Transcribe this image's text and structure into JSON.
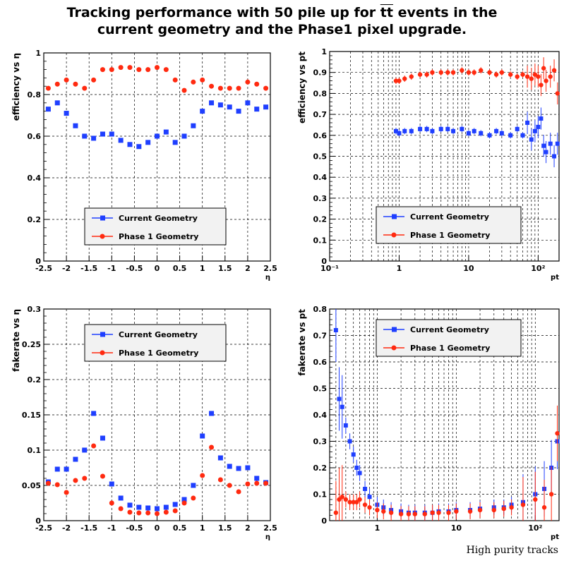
{
  "title": {
    "line1_pre": "Tracking performance with 50 pile up for ",
    "line1_tt": "tt",
    "line1_post": " events in the",
    "line2": "current geometry and the Phase1 pixel upgrade."
  },
  "footnote": "High purity tracks",
  "colors": {
    "current": "#1f3fff",
    "phase1": "#ff2a10"
  },
  "chart_data": [
    {
      "id": "eff-eta",
      "type": "scatter",
      "ylabel": "efficiency vs η",
      "xlabel": "η",
      "xlim": [
        -2.5,
        2.5
      ],
      "ylim": [
        0,
        1
      ],
      "xscale": "linear",
      "xticks": [
        -2.5,
        -2,
        -1.5,
        -1,
        -0.5,
        0,
        0.5,
        1,
        1.5,
        2,
        2.5
      ],
      "xticklabels": [
        "-2.5",
        "-2",
        "-1.5",
        "-1",
        "-0.5",
        "0",
        "0.5",
        "1",
        "1.5",
        "2",
        "2.5"
      ],
      "yticks": [
        0,
        0.2,
        0.4,
        0.6,
        0.8,
        1
      ],
      "yticklabels": [
        "0",
        "0.2",
        "0.4",
        "0.6",
        "0.8",
        "1"
      ],
      "grid": true,
      "legend_position": "bottom-center",
      "series": [
        {
          "name": "Current Geometry",
          "marker": "square",
          "x": [
            -2.4,
            -2.2,
            -2.0,
            -1.8,
            -1.6,
            -1.4,
            -1.2,
            -1.0,
            -0.8,
            -0.6,
            -0.4,
            -0.2,
            0.0,
            0.2,
            0.4,
            0.6,
            0.8,
            1.0,
            1.2,
            1.4,
            1.6,
            1.8,
            2.0,
            2.2,
            2.4
          ],
          "y": [
            0.73,
            0.76,
            0.71,
            0.65,
            0.6,
            0.59,
            0.61,
            0.61,
            0.58,
            0.56,
            0.55,
            0.57,
            0.6,
            0.62,
            0.57,
            0.6,
            0.65,
            0.72,
            0.76,
            0.75,
            0.74,
            0.72,
            0.76,
            0.73,
            0.74
          ]
        },
        {
          "name": "Phase 1 Geometry",
          "marker": "circle",
          "x": [
            -2.4,
            -2.2,
            -2.0,
            -1.8,
            -1.6,
            -1.4,
            -1.2,
            -1.0,
            -0.8,
            -0.6,
            -0.4,
            -0.2,
            0.0,
            0.2,
            0.4,
            0.6,
            0.8,
            1.0,
            1.2,
            1.4,
            1.6,
            1.8,
            2.0,
            2.2,
            2.4
          ],
          "y": [
            0.83,
            0.85,
            0.87,
            0.85,
            0.83,
            0.87,
            0.92,
            0.92,
            0.93,
            0.93,
            0.92,
            0.92,
            0.93,
            0.92,
            0.87,
            0.82,
            0.86,
            0.87,
            0.84,
            0.83,
            0.83,
            0.83,
            0.86,
            0.85,
            0.83
          ]
        }
      ]
    },
    {
      "id": "eff-pt",
      "type": "scatter",
      "ylabel": "efficiency vs pt",
      "xlabel": "pt",
      "xlim": [
        0.1,
        200
      ],
      "ylim": [
        0,
        1
      ],
      "xscale": "log",
      "xticks": [
        0.1,
        1,
        10,
        100
      ],
      "xticklabels": [
        "10⁻¹",
        "1",
        "10",
        "10²"
      ],
      "yticks": [
        0,
        0.1,
        0.2,
        0.3,
        0.4,
        0.5,
        0.6,
        0.7,
        0.8,
        0.9,
        1
      ],
      "yticklabels": [
        "0",
        "0.1",
        "0.2",
        "0.3",
        "0.4",
        "0.5",
        "0.6",
        "0.7",
        "0.8",
        "0.9",
        "1"
      ],
      "grid": true,
      "legend_position": "bottom-left",
      "series": [
        {
          "name": "Current Geometry",
          "marker": "square",
          "x": [
            0.9,
            1.0,
            1.2,
            1.5,
            2,
            2.5,
            3,
            4,
            5,
            6,
            8,
            10,
            12,
            15,
            20,
            25,
            30,
            40,
            50,
            60,
            70,
            80,
            90,
            100,
            110,
            120,
            130,
            150,
            170,
            190
          ],
          "y": [
            0.62,
            0.61,
            0.62,
            0.62,
            0.63,
            0.63,
            0.62,
            0.63,
            0.63,
            0.62,
            0.63,
            0.61,
            0.62,
            0.61,
            0.6,
            0.62,
            0.61,
            0.6,
            0.63,
            0.6,
            0.66,
            0.58,
            0.62,
            0.64,
            0.68,
            0.55,
            0.52,
            0.56,
            0.5,
            0.56
          ]
        },
        {
          "name": "Phase 1 Geometry",
          "marker": "circle",
          "x": [
            0.9,
            1.0,
            1.2,
            1.5,
            2,
            2.5,
            3,
            4,
            5,
            6,
            8,
            10,
            12,
            15,
            20,
            25,
            30,
            40,
            50,
            60,
            70,
            80,
            90,
            100,
            110,
            120,
            130,
            150,
            170,
            190
          ],
          "y": [
            0.86,
            0.86,
            0.87,
            0.88,
            0.89,
            0.89,
            0.9,
            0.9,
            0.9,
            0.9,
            0.91,
            0.9,
            0.9,
            0.91,
            0.9,
            0.89,
            0.9,
            0.89,
            0.88,
            0.89,
            0.88,
            0.87,
            0.89,
            0.88,
            0.84,
            0.92,
            0.86,
            0.88,
            0.91,
            0.8
          ]
        }
      ]
    },
    {
      "id": "fake-eta",
      "type": "scatter",
      "ylabel": "fakerate vs η",
      "xlabel": "η",
      "xlim": [
        -2.5,
        2.5
      ],
      "ylim": [
        0,
        0.3
      ],
      "xscale": "linear",
      "xticks": [
        -2.5,
        -2,
        -1.5,
        -1,
        -0.5,
        0,
        0.5,
        1,
        1.5,
        2,
        2.5
      ],
      "xticklabels": [
        "-2.5",
        "-2",
        "-1.5",
        "-1",
        "-0.5",
        "0",
        "0.5",
        "1",
        "1.5",
        "2",
        "2.5"
      ],
      "yticks": [
        0,
        0.05,
        0.1,
        0.15,
        0.2,
        0.25,
        0.3
      ],
      "yticklabels": [
        "0",
        "0.05",
        "0.1",
        "0.15",
        "0.2",
        "0.25",
        "0.3"
      ],
      "grid": true,
      "legend_position": "top-center",
      "series": [
        {
          "name": "Current Geometry",
          "marker": "square",
          "x": [
            -2.4,
            -2.2,
            -2.0,
            -1.8,
            -1.6,
            -1.4,
            -1.2,
            -1.0,
            -0.8,
            -0.6,
            -0.4,
            -0.2,
            0.0,
            0.2,
            0.4,
            0.6,
            0.8,
            1.0,
            1.2,
            1.4,
            1.6,
            1.8,
            2.0,
            2.2,
            2.4
          ],
          "y": [
            0.055,
            0.073,
            0.073,
            0.087,
            0.1,
            0.152,
            0.117,
            0.052,
            0.032,
            0.022,
            0.019,
            0.018,
            0.017,
            0.019,
            0.023,
            0.03,
            0.05,
            0.12,
            0.152,
            0.089,
            0.077,
            0.074,
            0.075,
            0.06,
            0.054
          ]
        },
        {
          "name": "Phase 1 Geometry",
          "marker": "circle",
          "x": [
            -2.4,
            -2.2,
            -2.0,
            -1.8,
            -1.6,
            -1.4,
            -1.2,
            -1.0,
            -0.8,
            -0.6,
            -0.4,
            -0.2,
            0.0,
            0.2,
            0.4,
            0.6,
            0.8,
            1.0,
            1.2,
            1.4,
            1.6,
            1.8,
            2.0,
            2.2,
            2.4
          ],
          "y": [
            0.053,
            0.051,
            0.04,
            0.057,
            0.06,
            0.106,
            0.063,
            0.025,
            0.017,
            0.012,
            0.011,
            0.011,
            0.01,
            0.012,
            0.014,
            0.025,
            0.032,
            0.064,
            0.104,
            0.058,
            0.05,
            0.041,
            0.052,
            0.053,
            0.053
          ]
        }
      ]
    },
    {
      "id": "fake-pt",
      "type": "scatter",
      "ylabel": "fakerate vs pt",
      "xlabel": "pt",
      "xlim": [
        0.25,
        200
      ],
      "ylim": [
        0,
        0.8
      ],
      "xscale": "log",
      "xticks": [
        1,
        10,
        100
      ],
      "xticklabels": [
        "1",
        "10",
        "10²"
      ],
      "yticks": [
        0,
        0.1,
        0.2,
        0.3,
        0.4,
        0.5,
        0.6,
        0.7,
        0.8
      ],
      "yticklabels": [
        "0",
        "0.1",
        "0.2",
        "0.3",
        "0.4",
        "0.5",
        "0.6",
        "0.7",
        "0.8"
      ],
      "grid": true,
      "legend_position": "top-left",
      "series": [
        {
          "name": "Current Geometry",
          "marker": "square",
          "x": [
            0.3,
            0.33,
            0.36,
            0.4,
            0.45,
            0.5,
            0.55,
            0.6,
            0.7,
            0.8,
            1,
            1.2,
            1.5,
            2,
            2.5,
            3,
            4,
            5,
            6,
            8,
            10,
            15,
            20,
            30,
            40,
            50,
            70,
            100,
            130,
            160,
            190
          ],
          "y": [
            0.72,
            0.46,
            0.43,
            0.36,
            0.3,
            0.25,
            0.2,
            0.18,
            0.12,
            0.09,
            0.06,
            0.05,
            0.04,
            0.035,
            0.03,
            0.03,
            0.03,
            0.03,
            0.035,
            0.035,
            0.04,
            0.04,
            0.045,
            0.05,
            0.05,
            0.06,
            0.07,
            0.1,
            0.12,
            0.2,
            0.3
          ]
        },
        {
          "name": "Phase 1 Geometry",
          "marker": "circle",
          "x": [
            0.3,
            0.33,
            0.36,
            0.4,
            0.45,
            0.5,
            0.55,
            0.6,
            0.7,
            0.8,
            1,
            1.2,
            1.5,
            2,
            2.5,
            3,
            4,
            5,
            6,
            8,
            10,
            15,
            20,
            30,
            40,
            50,
            70,
            100,
            130,
            160,
            190
          ],
          "y": [
            0.03,
            0.08,
            0.09,
            0.08,
            0.07,
            0.07,
            0.07,
            0.08,
            0.06,
            0.05,
            0.04,
            0.035,
            0.03,
            0.025,
            0.025,
            0.025,
            0.025,
            0.03,
            0.03,
            0.03,
            0.035,
            0.035,
            0.04,
            0.04,
            0.045,
            0.05,
            0.06,
            0.08,
            0.05,
            0.1,
            0.33
          ]
        }
      ]
    }
  ]
}
